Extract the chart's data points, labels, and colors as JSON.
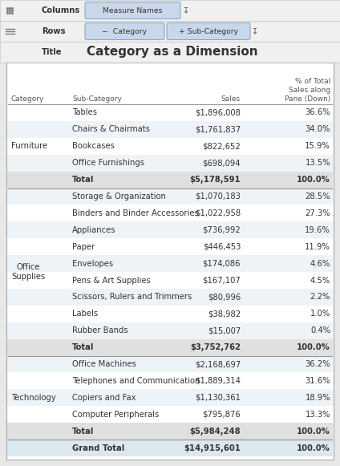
{
  "toolbar_bg": "#e8e8e8",
  "header_bg": "#f0f0f0",
  "pill_bg": "#c8d8ea",
  "pill_text": "#333333",
  "title_text": "Category as a Dimension",
  "columns_label": "Columns",
  "rows_label": "Rows",
  "title_label": "Title",
  "columns_pill": "Measure Names",
  "rows_pill1": "−  Category",
  "rows_pill2": "+ Sub-Category",
  "col_headers": [
    "Category",
    "Sub-Category",
    "Sales",
    "% of Total\nSales along\nPane (Down)"
  ],
  "sections": [
    {
      "category": "Furniture",
      "rows": [
        [
          "Tables",
          "$1,896,008",
          "36.6%"
        ],
        [
          "Chairs & Chairmats",
          "$1,761,837",
          "34.0%"
        ],
        [
          "Bookcases",
          "$822,652",
          "15.9%"
        ],
        [
          "Office Furnishings",
          "$698,094",
          "13.5%"
        ]
      ],
      "total": [
        "Total",
        "$5,178,591",
        "100.0%"
      ]
    },
    {
      "category": "Office\nSupplies",
      "rows": [
        [
          "Storage & Organization",
          "$1,070,183",
          "28.5%"
        ],
        [
          "Binders and Binder Accessories",
          "$1,022,958",
          "27.3%"
        ],
        [
          "Appliances",
          "$736,992",
          "19.6%"
        ],
        [
          "Paper",
          "$446,453",
          "11.9%"
        ],
        [
          "Envelopes",
          "$174,086",
          "4.6%"
        ],
        [
          "Pens & Art Supplies",
          "$167,107",
          "4.5%"
        ],
        [
          "Scissors, Rulers and Trimmers",
          "$80,996",
          "2.2%"
        ],
        [
          "Labels",
          "$38,982",
          "1.0%"
        ],
        [
          "Rubber Bands",
          "$15,007",
          "0.4%"
        ]
      ],
      "total": [
        "Total",
        "$3,752,762",
        "100.0%"
      ]
    },
    {
      "category": "Technology",
      "rows": [
        [
          "Office Machines",
          "$2,168,697",
          "36.2%"
        ],
        [
          "Telephones and Communication",
          "$1,889,314",
          "31.6%"
        ],
        [
          "Copiers and Fax",
          "$1,130,361",
          "18.9%"
        ],
        [
          "Computer Peripherals",
          "$795,876",
          "13.3%"
        ]
      ],
      "total": [
        "Total",
        "$5,984,248",
        "100.0%"
      ]
    }
  ],
  "grand_total": [
    "Grand Total",
    "$14,915,601",
    "100.0%"
  ],
  "bg_color": "#ffffff",
  "outer_bg": "#e8e8e8",
  "text_color": "#333333",
  "header_color": "#555555",
  "total_bg": "#e0e0e0",
  "grand_total_bg": "#dce8f0",
  "row_alt": "#eef3f8",
  "border_color": "#aaaaaa",
  "sep_color": "#999999",
  "font_size": 7.2,
  "small_font": 6.5
}
